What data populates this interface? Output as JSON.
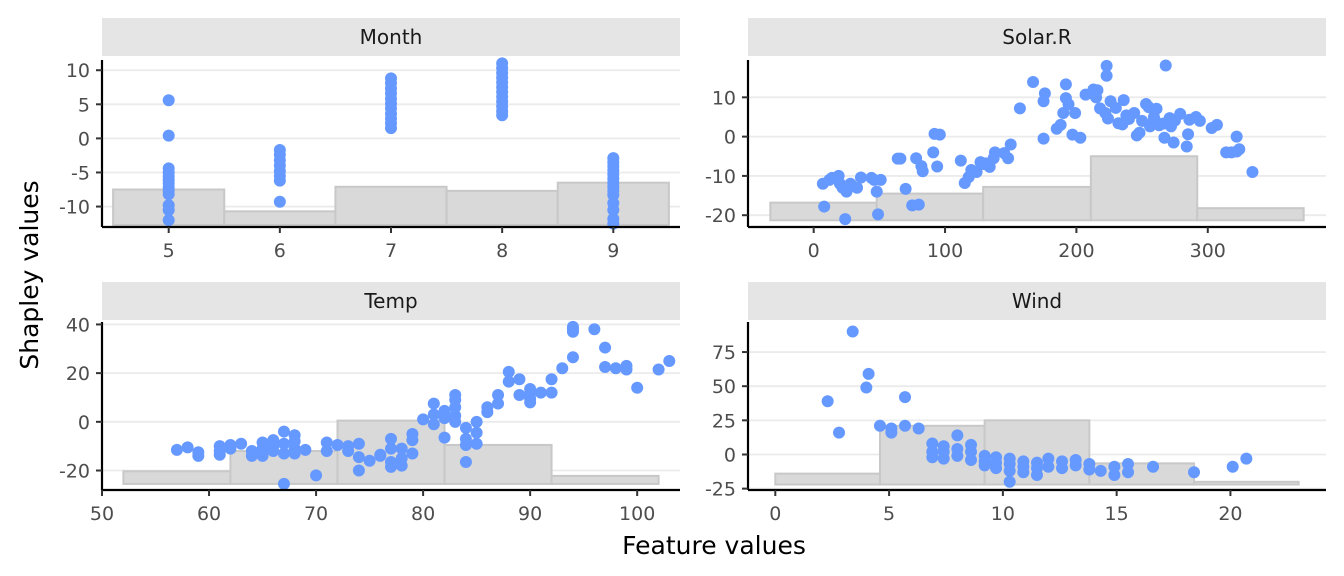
{
  "axis_titles": {
    "x": "Feature values",
    "y": "Shapley values"
  },
  "colors": {
    "points": "#6699ff",
    "bars": "#d9d9d9",
    "bar_outline": "#c8c8c8",
    "strip": "#e5e5e5",
    "grid": "#ebebeb"
  },
  "chart_data": [
    {
      "type": "scatter",
      "title": "Month",
      "xlim": [
        4.4,
        9.6
      ],
      "ylim": [
        -13,
        11.5
      ],
      "xticks": [
        5,
        6,
        7,
        8,
        9
      ],
      "yticks": [
        -10,
        -5,
        0,
        5,
        10
      ],
      "ytick_labels": [
        "-10",
        "-5",
        "0",
        "5",
        "10"
      ],
      "histogram": {
        "bins": [
          [
            4.5,
            5.5
          ],
          [
            5.5,
            6.5
          ],
          [
            6.5,
            7.5
          ],
          [
            7.5,
            8.5
          ],
          [
            8.5,
            9.5
          ]
        ],
        "heights": [
          -7.5,
          -10.7,
          -7.1,
          -7.7,
          -6.5
        ],
        "base": -12.7
      },
      "points": [
        [
          5,
          5.6
        ],
        [
          5,
          0.4
        ],
        [
          5,
          -4.4
        ],
        [
          5,
          -5
        ],
        [
          5,
          -5.6
        ],
        [
          5,
          -6.1
        ],
        [
          5,
          -6.6
        ],
        [
          5,
          -7.2
        ],
        [
          5,
          -7.7
        ],
        [
          5,
          -8.2
        ],
        [
          5,
          -9.8
        ],
        [
          5,
          -10.5
        ],
        [
          5,
          -12
        ],
        [
          6,
          -1.7
        ],
        [
          6,
          -2.4
        ],
        [
          6,
          -3.2
        ],
        [
          6,
          -4
        ],
        [
          6,
          -4.8
        ],
        [
          6,
          -5.5
        ],
        [
          6,
          -6.2
        ],
        [
          6,
          -9.3
        ],
        [
          7,
          8.8
        ],
        [
          7,
          8.1
        ],
        [
          7,
          7.3
        ],
        [
          7,
          6.6
        ],
        [
          7,
          5.8
        ],
        [
          7,
          5.1
        ],
        [
          7,
          4.4
        ],
        [
          7,
          3.6
        ],
        [
          7,
          2.9
        ],
        [
          7,
          2.2
        ],
        [
          7,
          1.5
        ],
        [
          8,
          11
        ],
        [
          8,
          10.3
        ],
        [
          8,
          9.6
        ],
        [
          8,
          8.9
        ],
        [
          8,
          8.2
        ],
        [
          8,
          7.5
        ],
        [
          8,
          6.8
        ],
        [
          8,
          6.1
        ],
        [
          8,
          5.4
        ],
        [
          8,
          4.7
        ],
        [
          8,
          4
        ],
        [
          8,
          3.4
        ],
        [
          9,
          -2.9
        ],
        [
          9,
          -3.5
        ],
        [
          9,
          -4.1
        ],
        [
          9,
          -4.7
        ],
        [
          9,
          -5.3
        ],
        [
          9,
          -5.9
        ],
        [
          9,
          -6.5
        ],
        [
          9,
          -7.1
        ],
        [
          9,
          -7.7
        ],
        [
          9,
          -8.3
        ],
        [
          9,
          -9.5
        ],
        [
          9,
          -10.5
        ],
        [
          9,
          -11.8
        ],
        [
          9,
          -12.5
        ]
      ]
    },
    {
      "type": "scatter",
      "title": "Solar.R",
      "xlim": [
        -50,
        390
      ],
      "ylim": [
        -23,
        19.5
      ],
      "xticks": [
        0,
        100,
        200,
        300
      ],
      "yticks": [
        -20,
        -10,
        0,
        10
      ],
      "ytick_labels": [
        "-20",
        "-10",
        "0",
        "10"
      ],
      "histogram": {
        "bins": [
          [
            -33,
            48
          ],
          [
            48,
            129
          ],
          [
            129,
            211
          ],
          [
            211,
            292
          ],
          [
            292,
            373
          ]
        ],
        "heights": [
          -16.8,
          -14.5,
          -12.8,
          -5,
          -18.2
        ],
        "base": -21.3
      },
      "points": [
        [
          7,
          -12
        ],
        [
          8,
          -17.8
        ],
        [
          12,
          -11
        ],
        [
          14,
          -10.5
        ],
        [
          19,
          -10
        ],
        [
          20,
          -12
        ],
        [
          22,
          -13
        ],
        [
          24,
          -21
        ],
        [
          25,
          -14
        ],
        [
          28,
          -12
        ],
        [
          33,
          -13
        ],
        [
          36,
          -10.4
        ],
        [
          44,
          -10.5
        ],
        [
          46,
          -11
        ],
        [
          48,
          -14
        ],
        [
          49,
          -19.8
        ],
        [
          51,
          -11
        ],
        [
          64,
          -5.6
        ],
        [
          66,
          -5.6
        ],
        [
          70,
          -13.3
        ],
        [
          75,
          -17.5
        ],
        [
          78,
          -5.5
        ],
        [
          80,
          -17.3
        ],
        [
          82,
          -7.5
        ],
        [
          83,
          -8.8
        ],
        [
          91,
          -4
        ],
        [
          92,
          0.7
        ],
        [
          94,
          -7.6
        ],
        [
          96,
          0.5
        ],
        [
          112,
          -6.1
        ],
        [
          115,
          -11.8
        ],
        [
          118,
          -10.3
        ],
        [
          120,
          -8.5
        ],
        [
          124,
          -9
        ],
        [
          127,
          -6.5
        ],
        [
          130,
          -7
        ],
        [
          131,
          -6.8
        ],
        [
          134,
          -7.7
        ],
        [
          137,
          -5.5
        ],
        [
          138,
          -4
        ],
        [
          145,
          -4.2
        ],
        [
          148,
          -5.5
        ],
        [
          150,
          -2
        ],
        [
          157,
          7.2
        ],
        [
          167,
          13.9
        ],
        [
          175,
          -0.5
        ],
        [
          175,
          9
        ],
        [
          176,
          11
        ],
        [
          185,
          2
        ],
        [
          188,
          3
        ],
        [
          190,
          6
        ],
        [
          192,
          9.8
        ],
        [
          192,
          13.3
        ],
        [
          194,
          8.2
        ],
        [
          197,
          0.5
        ],
        [
          199,
          6
        ],
        [
          203,
          -0.3
        ],
        [
          207,
          10.7
        ],
        [
          212,
          11
        ],
        [
          213,
          12
        ],
        [
          215,
          10
        ],
        [
          216,
          11.8
        ],
        [
          218,
          7.2
        ],
        [
          222,
          6
        ],
        [
          223,
          15.5
        ],
        [
          223,
          18
        ],
        [
          224,
          4.6
        ],
        [
          226,
          9
        ],
        [
          230,
          7.3
        ],
        [
          232,
          3.4
        ],
        [
          235,
          3.1
        ],
        [
          236,
          9.3
        ],
        [
          238,
          5.4
        ],
        [
          240,
          4.5
        ],
        [
          244,
          6
        ],
        [
          246,
          0.3
        ],
        [
          248,
          1
        ],
        [
          250,
          4
        ],
        [
          253,
          8.3
        ],
        [
          255,
          7.5
        ],
        [
          256,
          2.6
        ],
        [
          258,
          3.5
        ],
        [
          259,
          5
        ],
        [
          260,
          4
        ],
        [
          261,
          7.1
        ],
        [
          263,
          2.9
        ],
        [
          266,
          3.3
        ],
        [
          267,
          -0.3
        ],
        [
          268,
          18.1
        ],
        [
          271,
          4.7
        ],
        [
          272,
          2.6
        ],
        [
          274,
          -1.5
        ],
        [
          275,
          4.1
        ],
        [
          279,
          5.8
        ],
        [
          284,
          -2.5
        ],
        [
          285,
          0.6
        ],
        [
          286,
          4.3
        ],
        [
          291,
          5
        ],
        [
          294,
          4
        ],
        [
          303,
          2.2
        ],
        [
          307,
          3
        ],
        [
          314,
          -4
        ],
        [
          318,
          -4
        ],
        [
          322,
          0
        ],
        [
          322,
          -3.8
        ],
        [
          324,
          -3.2
        ],
        [
          334,
          -9
        ]
      ]
    },
    {
      "type": "scatter",
      "title": "Temp",
      "xlim": [
        50,
        104
      ],
      "ylim": [
        -28,
        41
      ],
      "xticks": [
        50,
        60,
        70,
        80,
        90,
        100
      ],
      "yticks": [
        -20,
        0,
        20,
        40
      ],
      "ytick_labels": [
        "-20",
        "0",
        "20",
        "40"
      ],
      "histogram": {
        "bins": [
          [
            52,
            62
          ],
          [
            62,
            72
          ],
          [
            72,
            82
          ],
          [
            82,
            92
          ],
          [
            92,
            102
          ]
        ],
        "heights": [
          -20.3,
          -12,
          0.5,
          -9.5,
          -22.2
        ],
        "base": -25.5
      },
      "points": [
        [
          57,
          -11.5
        ],
        [
          58,
          -10.5
        ],
        [
          59,
          -12.5
        ],
        [
          59,
          -14
        ],
        [
          61,
          -10
        ],
        [
          61,
          -12
        ],
        [
          61,
          -13.5
        ],
        [
          62,
          -9.5
        ],
        [
          62,
          -11
        ],
        [
          63,
          -9
        ],
        [
          64,
          -12
        ],
        [
          64,
          -14
        ],
        [
          65,
          -8.5
        ],
        [
          65,
          -11
        ],
        [
          65,
          -14
        ],
        [
          66,
          -7.5
        ],
        [
          66,
          -10
        ],
        [
          66,
          -12
        ],
        [
          67,
          -4
        ],
        [
          67,
          -9
        ],
        [
          67,
          -13
        ],
        [
          67,
          -25.5
        ],
        [
          68,
          -5.5
        ],
        [
          68,
          -8
        ],
        [
          68,
          -11
        ],
        [
          68,
          -13
        ],
        [
          69,
          -11.5
        ],
        [
          70,
          -22
        ],
        [
          71,
          -8.5
        ],
        [
          71,
          -12
        ],
        [
          72,
          -9.5
        ],
        [
          73,
          -10
        ],
        [
          73,
          -12
        ],
        [
          74,
          -14.5
        ],
        [
          74,
          -20
        ],
        [
          74,
          -9
        ],
        [
          75,
          -16
        ],
        [
          76,
          -14
        ],
        [
          76,
          -13.5
        ],
        [
          77,
          -7
        ],
        [
          77,
          -11
        ],
        [
          77,
          -16.5
        ],
        [
          77,
          -18.5
        ],
        [
          78,
          -11
        ],
        [
          78,
          -15
        ],
        [
          78,
          -18
        ],
        [
          79,
          -7.5
        ],
        [
          79,
          -5
        ],
        [
          79,
          -13
        ],
        [
          80,
          1
        ],
        [
          81,
          3
        ],
        [
          81,
          7.5
        ],
        [
          81,
          -1
        ],
        [
          82,
          4.5
        ],
        [
          82,
          1.5
        ],
        [
          82,
          -6.5
        ],
        [
          83,
          0
        ],
        [
          83,
          2.5
        ],
        [
          83,
          6
        ],
        [
          83,
          9
        ],
        [
          83,
          11
        ],
        [
          84,
          -2.5
        ],
        [
          84,
          -9.5
        ],
        [
          84,
          -7
        ],
        [
          84,
          -16.5
        ],
        [
          85,
          0
        ],
        [
          85,
          -4.5
        ],
        [
          85,
          -9
        ],
        [
          86,
          4
        ],
        [
          86,
          6
        ],
        [
          87,
          7.5
        ],
        [
          87,
          11
        ],
        [
          88,
          20.5
        ],
        [
          88,
          16.5
        ],
        [
          89,
          11
        ],
        [
          89,
          17.5
        ],
        [
          90,
          8
        ],
        [
          90,
          9.5
        ],
        [
          90,
          11.5
        ],
        [
          90,
          13.5
        ],
        [
          91,
          12
        ],
        [
          92,
          17.5
        ],
        [
          92,
          12
        ],
        [
          93,
          22
        ],
        [
          94,
          38
        ],
        [
          94,
          39
        ],
        [
          94,
          37
        ],
        [
          94,
          26.5
        ],
        [
          96,
          38
        ],
        [
          97,
          30.5
        ],
        [
          97,
          22.5
        ],
        [
          98,
          22
        ],
        [
          99,
          21.5
        ],
        [
          99,
          23
        ],
        [
          100,
          14
        ],
        [
          102,
          21.5
        ],
        [
          103,
          25
        ]
      ]
    },
    {
      "type": "scatter",
      "title": "Wind",
      "xlim": [
        -1.2,
        24.2
      ],
      "ylim": [
        -26,
        97
      ],
      "xticks": [
        0,
        5,
        10,
        15,
        20
      ],
      "yticks": [
        -25,
        0,
        25,
        50,
        75
      ],
      "ytick_labels": [
        "-25",
        "0",
        "25",
        "50",
        "75"
      ],
      "histogram": {
        "bins": [
          [
            0,
            4.6
          ],
          [
            4.6,
            9.2
          ],
          [
            9.2,
            13.8
          ],
          [
            13.8,
            18.4
          ],
          [
            18.4,
            23
          ]
        ],
        "heights": [
          -14,
          21,
          25,
          -6.5,
          -20
        ],
        "base": -22
      },
      "points": [
        [
          2.3,
          39
        ],
        [
          2.8,
          16
        ],
        [
          3.4,
          90
        ],
        [
          4.0,
          49
        ],
        [
          4.1,
          59
        ],
        [
          4.6,
          21
        ],
        [
          5.1,
          16
        ],
        [
          5.1,
          19
        ],
        [
          5.7,
          42
        ],
        [
          5.7,
          21
        ],
        [
          6.3,
          19
        ],
        [
          6.9,
          8
        ],
        [
          6.9,
          2
        ],
        [
          6.9,
          -2
        ],
        [
          7.4,
          6
        ],
        [
          7.4,
          2
        ],
        [
          7.4,
          -3
        ],
        [
          8.0,
          14
        ],
        [
          8.0,
          4
        ],
        [
          8.0,
          -1
        ],
        [
          8.6,
          7
        ],
        [
          8.6,
          2
        ],
        [
          8.6,
          -4
        ],
        [
          9.2,
          -1
        ],
        [
          9.2,
          -5
        ],
        [
          9.2,
          -8
        ],
        [
          9.7,
          -2
        ],
        [
          9.7,
          -6
        ],
        [
          9.7,
          -10
        ],
        [
          10.3,
          -3
        ],
        [
          10.3,
          -7
        ],
        [
          10.3,
          -12
        ],
        [
          10.3,
          -20
        ],
        [
          10.9,
          -5
        ],
        [
          10.9,
          -9
        ],
        [
          10.9,
          -13
        ],
        [
          11.5,
          -6
        ],
        [
          11.5,
          -10
        ],
        [
          11.5,
          -15
        ],
        [
          12.0,
          -3
        ],
        [
          12.0,
          -9
        ],
        [
          12.6,
          -5
        ],
        [
          12.6,
          -10
        ],
        [
          13.2,
          -4
        ],
        [
          13.2,
          -8
        ],
        [
          13.8,
          -7
        ],
        [
          13.8,
          -11
        ],
        [
          14.3,
          -12
        ],
        [
          14.9,
          -9
        ],
        [
          14.9,
          -15
        ],
        [
          15.5,
          -7
        ],
        [
          15.5,
          -13
        ],
        [
          16.6,
          -9
        ],
        [
          18.4,
          -13
        ],
        [
          20.1,
          -9
        ],
        [
          20.7,
          -3
        ]
      ]
    }
  ]
}
